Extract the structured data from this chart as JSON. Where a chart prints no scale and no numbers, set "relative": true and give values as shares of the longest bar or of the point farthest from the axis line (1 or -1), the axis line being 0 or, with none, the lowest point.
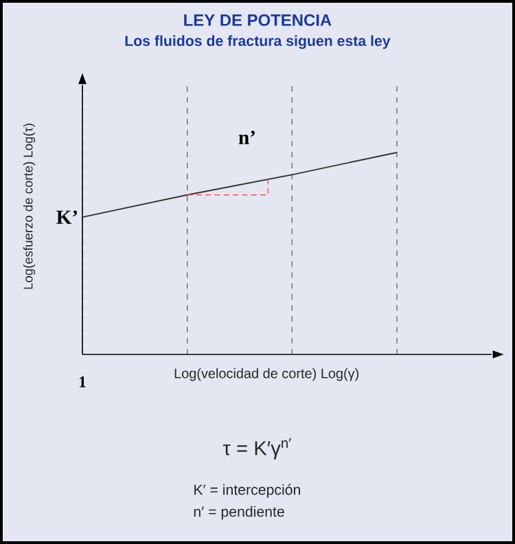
{
  "chart_data": {
    "type": "line",
    "title": "LEY DE POTENCIA",
    "subtitle": "Los fluidos de fractura siguen esta ley",
    "xlabel": "Log(velocidad de corte)   Log(γ)",
    "ylabel": "Log(esfuerzo de corte)      Log(τ)",
    "categories": [
      null,
      null,
      null,
      null
    ],
    "relative": true,
    "series": [
      {
        "color": "#333333",
        "values": [
          0.68,
          0.79,
          0.89,
          1
        ]
      }
    ],
    "annotations": [
      "K’",
      "n’",
      "1",
      "τ   = K′γ$^{n′}$",
      "K′ = intercepción",
      "n′  = pendiente"
    ],
    "grid": "x",
    "marker": "none",
    "line_style": "solid"
  }
}
